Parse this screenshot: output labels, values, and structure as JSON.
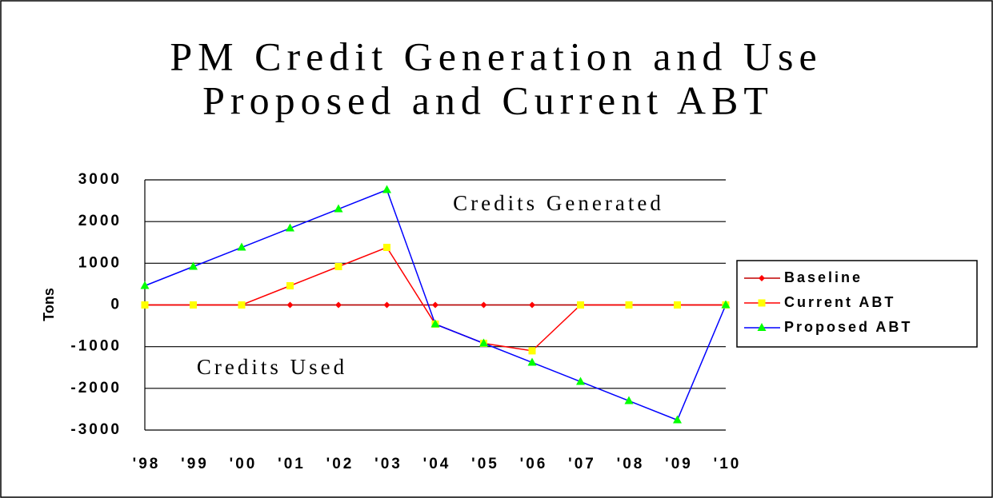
{
  "chart_data": {
    "type": "line",
    "title_lines": [
      "PM Credit Generation and Use",
      "Proposed and Current ABT"
    ],
    "y_label": "Tons",
    "annotations": [
      "Credits Generated",
      "Credits Used"
    ],
    "categories": [
      "'98",
      "'99",
      "'00",
      "'01",
      "'02",
      "'03",
      "'04",
      "'05",
      "'06",
      "'07",
      "'08",
      "'09",
      "'10"
    ],
    "series": [
      {
        "name": "Baseline",
        "color": "#c00000",
        "marker": "diamond",
        "marker_color": "#ff0000",
        "values": [
          0,
          0,
          0,
          0,
          0,
          0,
          0,
          0,
          0,
          0,
          0,
          0,
          0
        ]
      },
      {
        "name": "Current ABT",
        "color": "#ff0000",
        "marker": "square",
        "marker_color": "#ffff00",
        "values": [
          0,
          0,
          0,
          460,
          920,
          1380,
          -460,
          -920,
          -1100,
          0,
          0,
          0,
          0
        ]
      },
      {
        "name": "Proposed ABT",
        "color": "#0000ff",
        "marker": "triangle",
        "marker_color": "#00ff00",
        "values": [
          460,
          920,
          1380,
          1840,
          2300,
          2760,
          -460,
          -920,
          -1380,
          -1840,
          -2300,
          -2760,
          0
        ]
      }
    ],
    "ylim": [
      -3000,
      3000
    ],
    "yticks": [
      -3000,
      -2000,
      -1000,
      0,
      1000,
      2000,
      3000
    ],
    "grid": true,
    "legend": "right"
  }
}
